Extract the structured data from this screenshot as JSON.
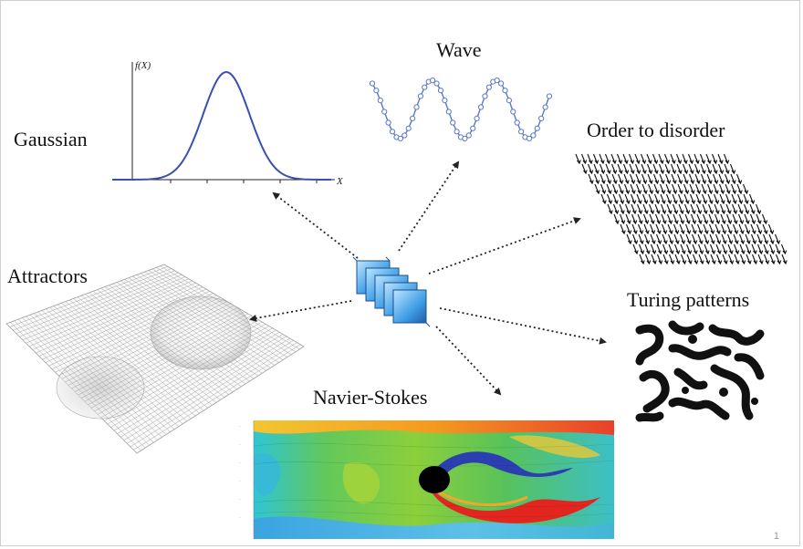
{
  "labels": {
    "gaussian": "Gaussian",
    "wave": "Wave",
    "order": "Order to disorder",
    "attractors": "Attractors",
    "turing": "Turing patterns",
    "navier": "Navier-Stokes"
  },
  "gaussian_axes": {
    "y": "f(X)",
    "x": "X"
  },
  "page_number": "1",
  "colors": {
    "gaussian_curve": "#3a4fb0",
    "wave_curve": "#5a78c8",
    "arrow": "#222222",
    "cube_fill": "#4aa3e6",
    "cube_edge": "#1b4f8a"
  }
}
